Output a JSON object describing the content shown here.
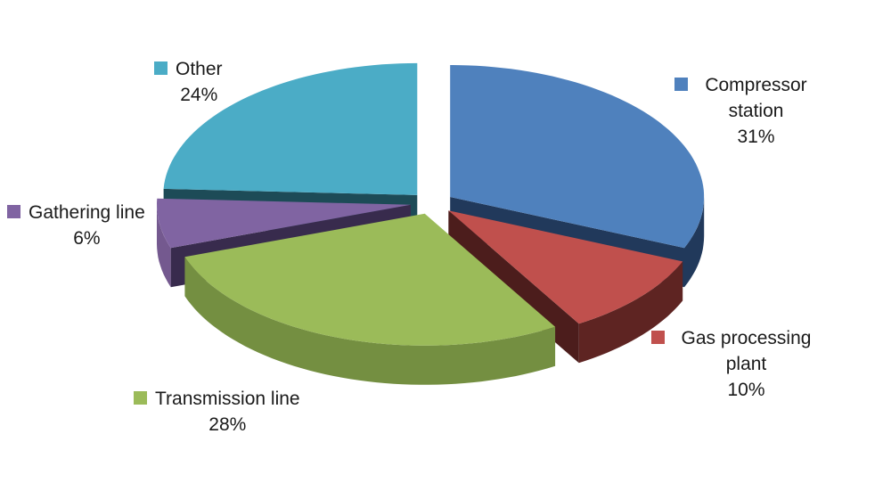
{
  "chart_data": {
    "type": "pie",
    "effect": "3d-exploded",
    "title": "",
    "start_angle_deg": 0,
    "direction": "clockwise",
    "labels": "outside, category name with percent",
    "background": "#FFFFFF",
    "text_color": "#1A1A1A",
    "slices": [
      {
        "label": "Compressor station",
        "value": 31,
        "pct_label": "31%",
        "color": "#4F81BD",
        "side_outer": "#21395B",
        "side_radial": "#21395B"
      },
      {
        "label": "Gas processing plant",
        "value": 10,
        "pct_label": "10%",
        "color": "#C0504D",
        "side_outer": "#5E2422",
        "side_radial": "#4C1D1C"
      },
      {
        "label": "Transmission line",
        "value": 28,
        "pct_label": "28%",
        "color": "#9BBB59",
        "side_outer": "#748F41",
        "side_radial": "#5E7434"
      },
      {
        "label": "Gathering line",
        "value": 6,
        "pct_label": "6%",
        "color": "#8064A2",
        "side_outer": "#74598F",
        "side_radial": "#382B4D"
      },
      {
        "label": "Other",
        "value": 24,
        "pct_label": "24%",
        "color": "#4BACC6",
        "side_outer": "#2E7D92",
        "side_radial": "#1D4B57"
      }
    ]
  }
}
